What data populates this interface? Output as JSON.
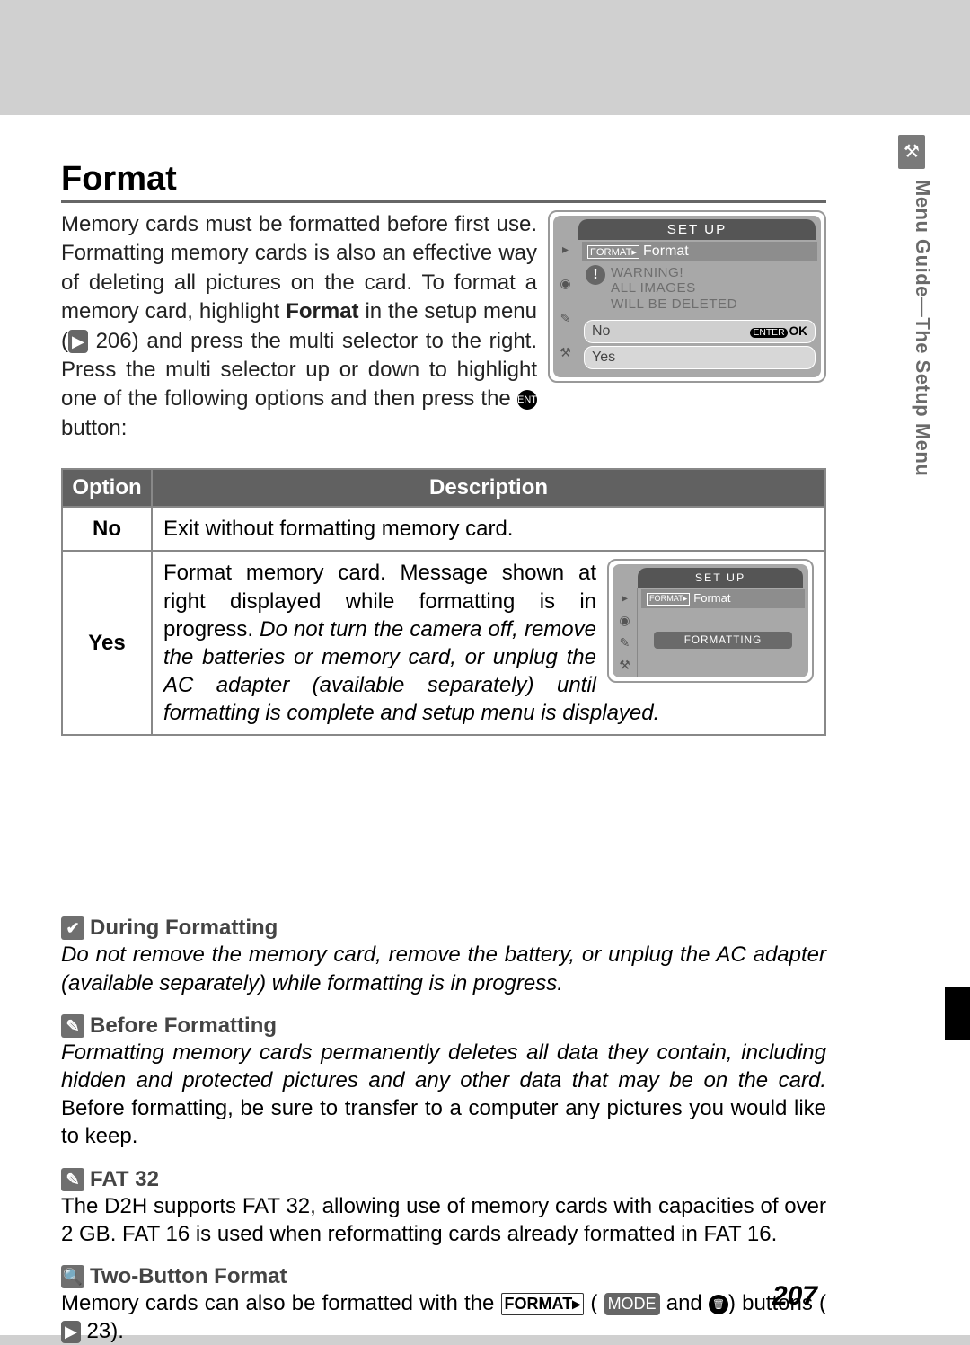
{
  "sideTab": {
    "label": "Menu Guide—The Setup Menu"
  },
  "title": "Format",
  "intro": {
    "text_before_bold": "Memory cards must be formatted before first use. Formatting memory cards is also an effective way of deleting all pictures on the card.  To format a memory card, highlight ",
    "bold": "Format",
    "text_after_bold": " in the setup menu (",
    "ref1": "206",
    "text_tail": ") and press the multi selector to the right.  Press the multi selector up or down to highlight one of the following options and then press the ",
    "text_end": " button:"
  },
  "lcd1": {
    "titlebar": "SET  UP",
    "line1": "Format",
    "warning_l1": "WARNING!",
    "warning_l2": "ALL IMAGES",
    "warning_l3": "WILL BE DELETED",
    "opt_no": "No",
    "opt_yes": "Yes",
    "ok": "OK",
    "enter": "ENTER"
  },
  "table": {
    "h1": "Option",
    "h2": "Description",
    "rows": [
      {
        "opt": "No",
        "desc": "Exit without formatting memory card."
      },
      {
        "opt": "Yes",
        "desc_a": "Format memory card.  Message shown at right displayed while formatting is in progress.  ",
        "desc_em": "Do not turn the camera off, remove the batteries or memory card, or unplug the AC adapter (available separately) until formatting is complete and setup menu is displayed."
      }
    ]
  },
  "lcd2": {
    "titlebar": "SET  UP",
    "line1": "Format",
    "formatting": "FORMATTING"
  },
  "notes": [
    {
      "icon": "✔",
      "head": "During Formatting",
      "body_em": "Do not remove the memory card, remove the battery, or unplug the AC adapter (available separately) while formatting is in progress."
    },
    {
      "icon": "✎",
      "head": "Before Formatting",
      "body_em": "Formatting memory cards permanently deletes all data they contain, including hidden and protected pictures and any other data that may be on the card.",
      "body": " Before formatting, be sure to transfer to a computer any pictures you would like to keep."
    },
    {
      "icon": "✎",
      "head": "FAT 32",
      "body": "The D2H supports FAT 32, allowing use of memory cards with capacities of over 2 GB. FAT 16 is used when reformatting cards already formatted in FAT 16."
    },
    {
      "icon": "🔍",
      "head": "Two-Button Format",
      "body_a": "Memory cards can also be formatted with the ",
      "body_b": " ( ",
      "body_c": " and ",
      "body_d": ") buttons (",
      "ref": "23",
      "body_e": ")."
    }
  ],
  "pagenum": "207"
}
